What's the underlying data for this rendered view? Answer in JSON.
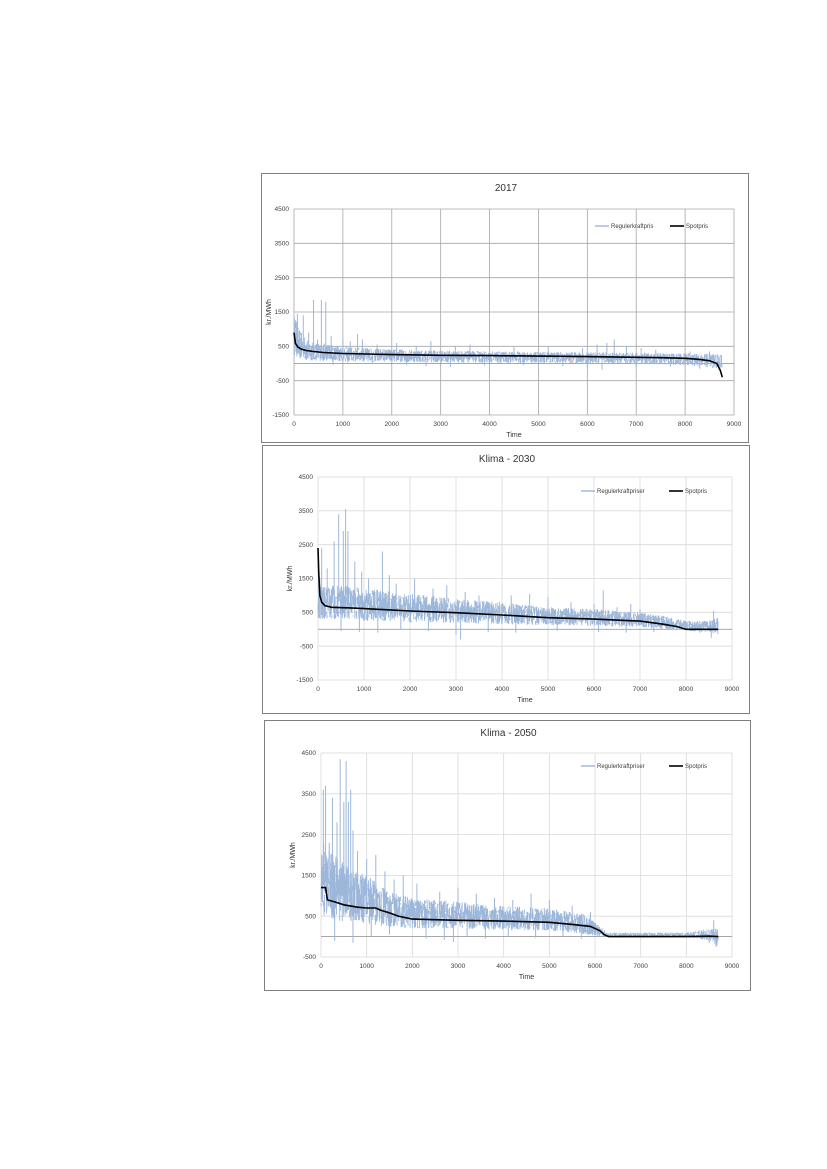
{
  "chart_data": [
    {
      "type": "line",
      "title": "2017",
      "xlabel": "Time",
      "ylabel": "kr./MWh",
      "xlim": [
        0,
        9000
      ],
      "ylim": [
        -1500,
        4500
      ],
      "xticks": [
        0,
        1000,
        2000,
        3000,
        4000,
        5000,
        6000,
        7000,
        8000,
        9000
      ],
      "yticks": [
        -1500,
        -500,
        500,
        1500,
        2500,
        3500,
        4500
      ],
      "grid": true,
      "grid_color": "#a6a6a6",
      "legend_position": "top-right",
      "series": [
        {
          "name": "Regulerkraftpris",
          "color": "#9db7da",
          "style": "noisy-band",
          "x": [
            0,
            100,
            200,
            300,
            500,
            800,
            1000,
            1500,
            2000,
            3000,
            4000,
            5000,
            6000,
            7000,
            8000,
            8400,
            8650,
            8750
          ],
          "upper": [
            1450,
            1000,
            800,
            650,
            600,
            550,
            500,
            450,
            420,
            380,
            360,
            340,
            330,
            320,
            300,
            300,
            280,
            250
          ],
          "lower": [
            250,
            150,
            100,
            80,
            80,
            70,
            60,
            50,
            40,
            30,
            20,
            10,
            0,
            -20,
            -50,
            -100,
            -150,
            -250
          ],
          "spikes": [
            [
              70,
              1450
            ],
            [
              190,
              1400
            ],
            [
              300,
              900
            ],
            [
              400,
              1850
            ],
            [
              480,
              700
            ],
            [
              560,
              1850
            ],
            [
              650,
              1800
            ],
            [
              760,
              800
            ],
            [
              1000,
              700
            ],
            [
              1150,
              650
            ],
            [
              1300,
              850
            ],
            [
              1400,
              700
            ],
            [
              1700,
              550
            ],
            [
              2100,
              600
            ],
            [
              2500,
              500
            ],
            [
              2800,
              650
            ],
            [
              3300,
              500
            ],
            [
              3600,
              550
            ],
            [
              4500,
              480
            ],
            [
              5200,
              500
            ],
            [
              5900,
              450
            ],
            [
              6200,
              550
            ],
            [
              6400,
              600
            ],
            [
              6550,
              700
            ],
            [
              6800,
              500
            ],
            [
              7100,
              450
            ],
            [
              7400,
              400
            ],
            [
              8100,
              350
            ],
            [
              8500,
              350
            ],
            [
              600,
              60
            ],
            [
              800,
              -40
            ],
            [
              1100,
              30
            ],
            [
              1600,
              -20
            ],
            [
              2300,
              -50
            ],
            [
              2700,
              -80
            ],
            [
              3200,
              -100
            ],
            [
              3900,
              -60
            ],
            [
              4700,
              -50
            ],
            [
              5500,
              -80
            ],
            [
              6000,
              -120
            ],
            [
              6300,
              -180
            ],
            [
              7000,
              -120
            ],
            [
              7700,
              -80
            ],
            [
              8300,
              -150
            ]
          ]
        },
        {
          "name": "Spotpris",
          "color": "#000000",
          "style": "line",
          "x": [
            0,
            30,
            80,
            150,
            250,
            400,
            600,
            1000,
            2000,
            3000,
            4000,
            5000,
            6000,
            7000,
            7500,
            8000,
            8300,
            8500,
            8650,
            8720,
            8760
          ],
          "y": [
            900,
            580,
            480,
            420,
            380,
            350,
            320,
            290,
            260,
            240,
            230,
            215,
            200,
            180,
            170,
            150,
            120,
            80,
            0,
            -200,
            -400
          ]
        }
      ]
    },
    {
      "type": "line",
      "title": "Klima - 2030",
      "xlabel": "Time",
      "ylabel": "kr./MWh",
      "xlim": [
        0,
        9000
      ],
      "ylim": [
        -1500,
        4500
      ],
      "xticks": [
        0,
        1000,
        2000,
        3000,
        4000,
        5000,
        6000,
        7000,
        8000,
        9000
      ],
      "yticks": [
        -1500,
        -500,
        500,
        1500,
        2500,
        3500,
        4500
      ],
      "grid": true,
      "grid_color": "#d9d9d9",
      "legend_position": "top-right",
      "series": [
        {
          "name": "Regulerkraftpriser",
          "color": "#9db7da",
          "style": "noisy-band",
          "x": [
            0,
            50,
            150,
            300,
            500,
            800,
            1000,
            1500,
            2000,
            2500,
            3000,
            4000,
            5000,
            6000,
            7000,
            7500,
            8000,
            8500,
            8700
          ],
          "upper": [
            2500,
            1400,
            1250,
            1300,
            1300,
            1300,
            1200,
            1150,
            1050,
            980,
            900,
            800,
            650,
            600,
            500,
            400,
            250,
            250,
            350
          ],
          "lower": [
            300,
            300,
            300,
            300,
            300,
            280,
            250,
            230,
            200,
            200,
            180,
            150,
            120,
            100,
            50,
            0,
            -50,
            -80,
            -150
          ],
          "spikes": [
            [
              80,
              2400
            ],
            [
              200,
              1800
            ],
            [
              350,
              2600
            ],
            [
              450,
              3400
            ],
            [
              550,
              2900
            ],
            [
              600,
              3550
            ],
            [
              650,
              2900
            ],
            [
              800,
              2000
            ],
            [
              950,
              1700
            ],
            [
              1100,
              1500
            ],
            [
              1400,
              2300
            ],
            [
              1550,
              1600
            ],
            [
              1700,
              1350
            ],
            [
              2100,
              1500
            ],
            [
              2500,
              1200
            ],
            [
              2800,
              1300
            ],
            [
              3200,
              1100
            ],
            [
              3500,
              1000
            ],
            [
              4200,
              1000
            ],
            [
              4600,
              1050
            ],
            [
              5000,
              950
            ],
            [
              5500,
              800
            ],
            [
              6000,
              750
            ],
            [
              6200,
              1150
            ],
            [
              6500,
              650
            ],
            [
              6800,
              750
            ],
            [
              7000,
              600
            ],
            [
              8600,
              550
            ],
            [
              500,
              -50
            ],
            [
              900,
              -80
            ],
            [
              1300,
              -100
            ],
            [
              1800,
              0
            ],
            [
              2400,
              -50
            ],
            [
              3000,
              -150
            ],
            [
              3100,
              -300
            ],
            [
              3700,
              -80
            ],
            [
              4300,
              -100
            ],
            [
              5200,
              -50
            ],
            [
              6100,
              -80
            ],
            [
              6700,
              -100
            ],
            [
              7300,
              -80
            ],
            [
              8300,
              -100
            ],
            [
              8550,
              -250
            ]
          ]
        },
        {
          "name": "Spotpris",
          "color": "#000000",
          "style": "line",
          "x": [
            0,
            15,
            40,
            80,
            150,
            300,
            700,
            1000,
            2000,
            3000,
            4000,
            5000,
            6000,
            7000,
            7500,
            7800,
            8000,
            8500,
            8700
          ],
          "y": [
            2400,
            1700,
            1000,
            800,
            700,
            650,
            630,
            610,
            540,
            490,
            420,
            340,
            300,
            240,
            150,
            80,
            0,
            0,
            0
          ]
        }
      ]
    },
    {
      "type": "line",
      "title": "Klima - 2050",
      "xlabel": "Time",
      "ylabel": "kr./MWh",
      "xlim": [
        0,
        9000
      ],
      "ylim": [
        -500,
        4500
      ],
      "xticks": [
        0,
        1000,
        2000,
        3000,
        4000,
        5000,
        6000,
        7000,
        8000,
        9000
      ],
      "yticks": [
        -500,
        500,
        1500,
        2500,
        3500,
        4500
      ],
      "grid": true,
      "grid_color": "#d9d9d9",
      "legend_position": "top-right",
      "series": [
        {
          "name": "Regulerkraftpriser",
          "color": "#9db7da",
          "style": "noisy-band",
          "x": [
            0,
            50,
            100,
            300,
            500,
            800,
            1000,
            1500,
            2000,
            3000,
            4000,
            5000,
            5500,
            5800,
            6100,
            6300,
            7000,
            8000,
            8500,
            8700
          ],
          "upper": [
            2000,
            2300,
            2200,
            2000,
            1800,
            1600,
            1500,
            1100,
            950,
            850,
            750,
            700,
            600,
            550,
            250,
            100,
            100,
            100,
            200,
            250
          ],
          "lower": [
            500,
            500,
            450,
            400,
            350,
            300,
            300,
            250,
            200,
            200,
            150,
            150,
            100,
            50,
            0,
            -10,
            -10,
            -10,
            -100,
            -250
          ],
          "spikes": [
            [
              50,
              3600
            ],
            [
              100,
              3700
            ],
            [
              180,
              2300
            ],
            [
              250,
              3400
            ],
            [
              350,
              2800
            ],
            [
              420,
              4350
            ],
            [
              500,
              3300
            ],
            [
              550,
              4300
            ],
            [
              600,
              3300
            ],
            [
              650,
              3600
            ],
            [
              700,
              2600
            ],
            [
              800,
              2100
            ],
            [
              1000,
              1900
            ],
            [
              1200,
              2000
            ],
            [
              1400,
              1600
            ],
            [
              1600,
              1400
            ],
            [
              1800,
              1500
            ],
            [
              2100,
              1300
            ],
            [
              2600,
              1100
            ],
            [
              3000,
              1200
            ],
            [
              3400,
              1050
            ],
            [
              3800,
              950
            ],
            [
              4200,
              900
            ],
            [
              4600,
              1050
            ],
            [
              5000,
              900
            ],
            [
              5500,
              750
            ],
            [
              5900,
              600
            ],
            [
              8600,
              400
            ],
            [
              300,
              -100
            ],
            [
              700,
              -150
            ],
            [
              1100,
              0
            ],
            [
              1500,
              50
            ],
            [
              2300,
              -50
            ],
            [
              2700,
              -80
            ],
            [
              2900,
              -130
            ],
            [
              3200,
              0
            ],
            [
              3600,
              -50
            ],
            [
              4100,
              0
            ],
            [
              4700,
              -30
            ],
            [
              5300,
              0
            ],
            [
              5700,
              -50
            ],
            [
              8500,
              -150
            ],
            [
              8650,
              -250
            ]
          ]
        },
        {
          "name": "Spotpris",
          "color": "#000000",
          "style": "line",
          "x": [
            0,
            100,
            140,
            300,
            500,
            800,
            1000,
            1200,
            1300,
            1500,
            1700,
            2000,
            3000,
            4000,
            5000,
            5500,
            5900,
            6100,
            6200,
            6300,
            7000,
            8000,
            8500,
            8700
          ],
          "y": [
            1200,
            1200,
            900,
            850,
            780,
            720,
            700,
            700,
            650,
            580,
            500,
            430,
            400,
            380,
            350,
            300,
            250,
            150,
            50,
            0,
            0,
            0,
            10,
            0
          ]
        }
      ]
    }
  ]
}
